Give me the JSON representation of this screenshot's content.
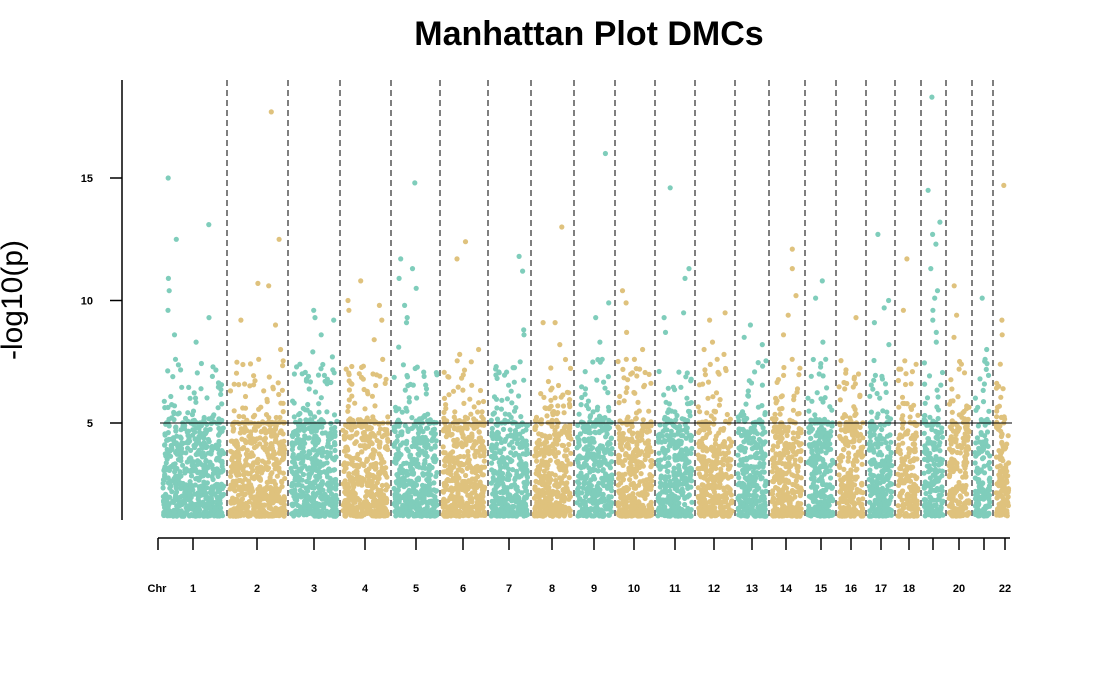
{
  "chart_data": {
    "type": "scatter",
    "title": "Manhattan Plot DMCs",
    "ylabel": "-log10(p)",
    "xlabel_prefix": "Chr",
    "ylim": [
      0,
      19
    ],
    "yticks": [
      5,
      10,
      15
    ],
    "threshold": 5,
    "grid": false,
    "colors": [
      "#7fcdbb",
      "#dfc27d"
    ],
    "chromosomes": [
      {
        "chr": "1",
        "label": "1",
        "peak": 15.0,
        "tops": [
          13.1,
          12.5,
          10.9,
          10.4,
          9.6,
          9.3,
          8.6,
          8.3,
          7.6
        ]
      },
      {
        "chr": "2",
        "label": "2",
        "peak": 17.7,
        "tops": [
          12.5,
          10.7,
          10.6,
          9.2,
          9.0,
          8.0,
          7.6
        ]
      },
      {
        "chr": "3",
        "label": "3",
        "peak": 9.6,
        "tops": [
          9.3,
          9.2,
          8.6,
          7.9,
          7.7,
          6.6
        ]
      },
      {
        "chr": "4",
        "label": "4",
        "peak": 10.8,
        "tops": [
          10.0,
          9.8,
          9.6,
          9.2,
          8.4,
          7.2,
          7.0
        ]
      },
      {
        "chr": "5",
        "label": "5",
        "peak": 14.8,
        "tops": [
          11.7,
          11.3,
          10.9,
          10.5,
          9.8,
          9.3,
          9.1,
          8.1
        ]
      },
      {
        "chr": "6",
        "label": "6",
        "peak": 12.4,
        "tops": [
          11.7,
          8.0,
          7.8,
          7.5
        ]
      },
      {
        "chr": "7",
        "label": "7",
        "peak": 11.8,
        "tops": [
          11.2,
          8.8,
          8.6,
          7.5,
          7.3
        ]
      },
      {
        "chr": "8",
        "label": "8",
        "peak": 13.0,
        "tops": [
          9.1,
          9.1,
          8.2,
          6.2
        ]
      },
      {
        "chr": "9",
        "label": "9",
        "peak": 16.0,
        "tops": [
          9.9,
          9.3,
          8.3,
          7.6,
          7.1
        ]
      },
      {
        "chr": "10",
        "label": "10",
        "peak": 10.4,
        "tops": [
          9.9,
          8.7,
          8.0,
          7.6,
          7.2
        ]
      },
      {
        "chr": "11",
        "label": "11",
        "peak": 14.6,
        "tops": [
          11.3,
          10.9,
          9.5,
          9.3,
          8.7
        ]
      },
      {
        "chr": "12",
        "label": "12",
        "peak": 9.5,
        "tops": [
          9.2,
          8.3,
          8.0,
          7.8,
          7.6
        ]
      },
      {
        "chr": "13",
        "label": "13",
        "peak": 9.0,
        "tops": [
          8.5,
          8.2,
          6.1
        ]
      },
      {
        "chr": "14",
        "label": "14",
        "peak": 12.1,
        "tops": [
          11.3,
          10.2,
          9.4,
          8.6,
          7.6
        ]
      },
      {
        "chr": "15",
        "label": "15",
        "peak": 10.8,
        "tops": [
          10.1,
          8.3,
          7.6,
          7.0
        ]
      },
      {
        "chr": "16",
        "label": "16",
        "peak": 9.3,
        "tops": [
          7.0,
          6.8,
          6.6
        ]
      },
      {
        "chr": "17",
        "label": "17",
        "peak": 12.7,
        "tops": [
          10.0,
          9.7,
          9.1,
          8.2
        ]
      },
      {
        "chr": "18",
        "label": "18",
        "peak": 11.7,
        "tops": [
          9.6,
          7.1,
          6.6
        ]
      },
      {
        "chr": "19",
        "label": "",
        "peak": 18.3,
        "tops": [
          14.5,
          13.2,
          12.7,
          12.3,
          11.3,
          10.4,
          10.1,
          9.6,
          9.2,
          8.7,
          8.3
        ]
      },
      {
        "chr": "20",
        "label": "20",
        "peak": 10.6,
        "tops": [
          9.4,
          8.5,
          7.4,
          7.2
        ]
      },
      {
        "chr": "21",
        "label": "",
        "peak": 10.1,
        "tops": [
          8.0,
          7.6,
          6.8
        ]
      },
      {
        "chr": "22",
        "label": "22",
        "peak": 14.7,
        "tops": [
          9.2,
          8.6,
          6.4
        ]
      }
    ]
  }
}
